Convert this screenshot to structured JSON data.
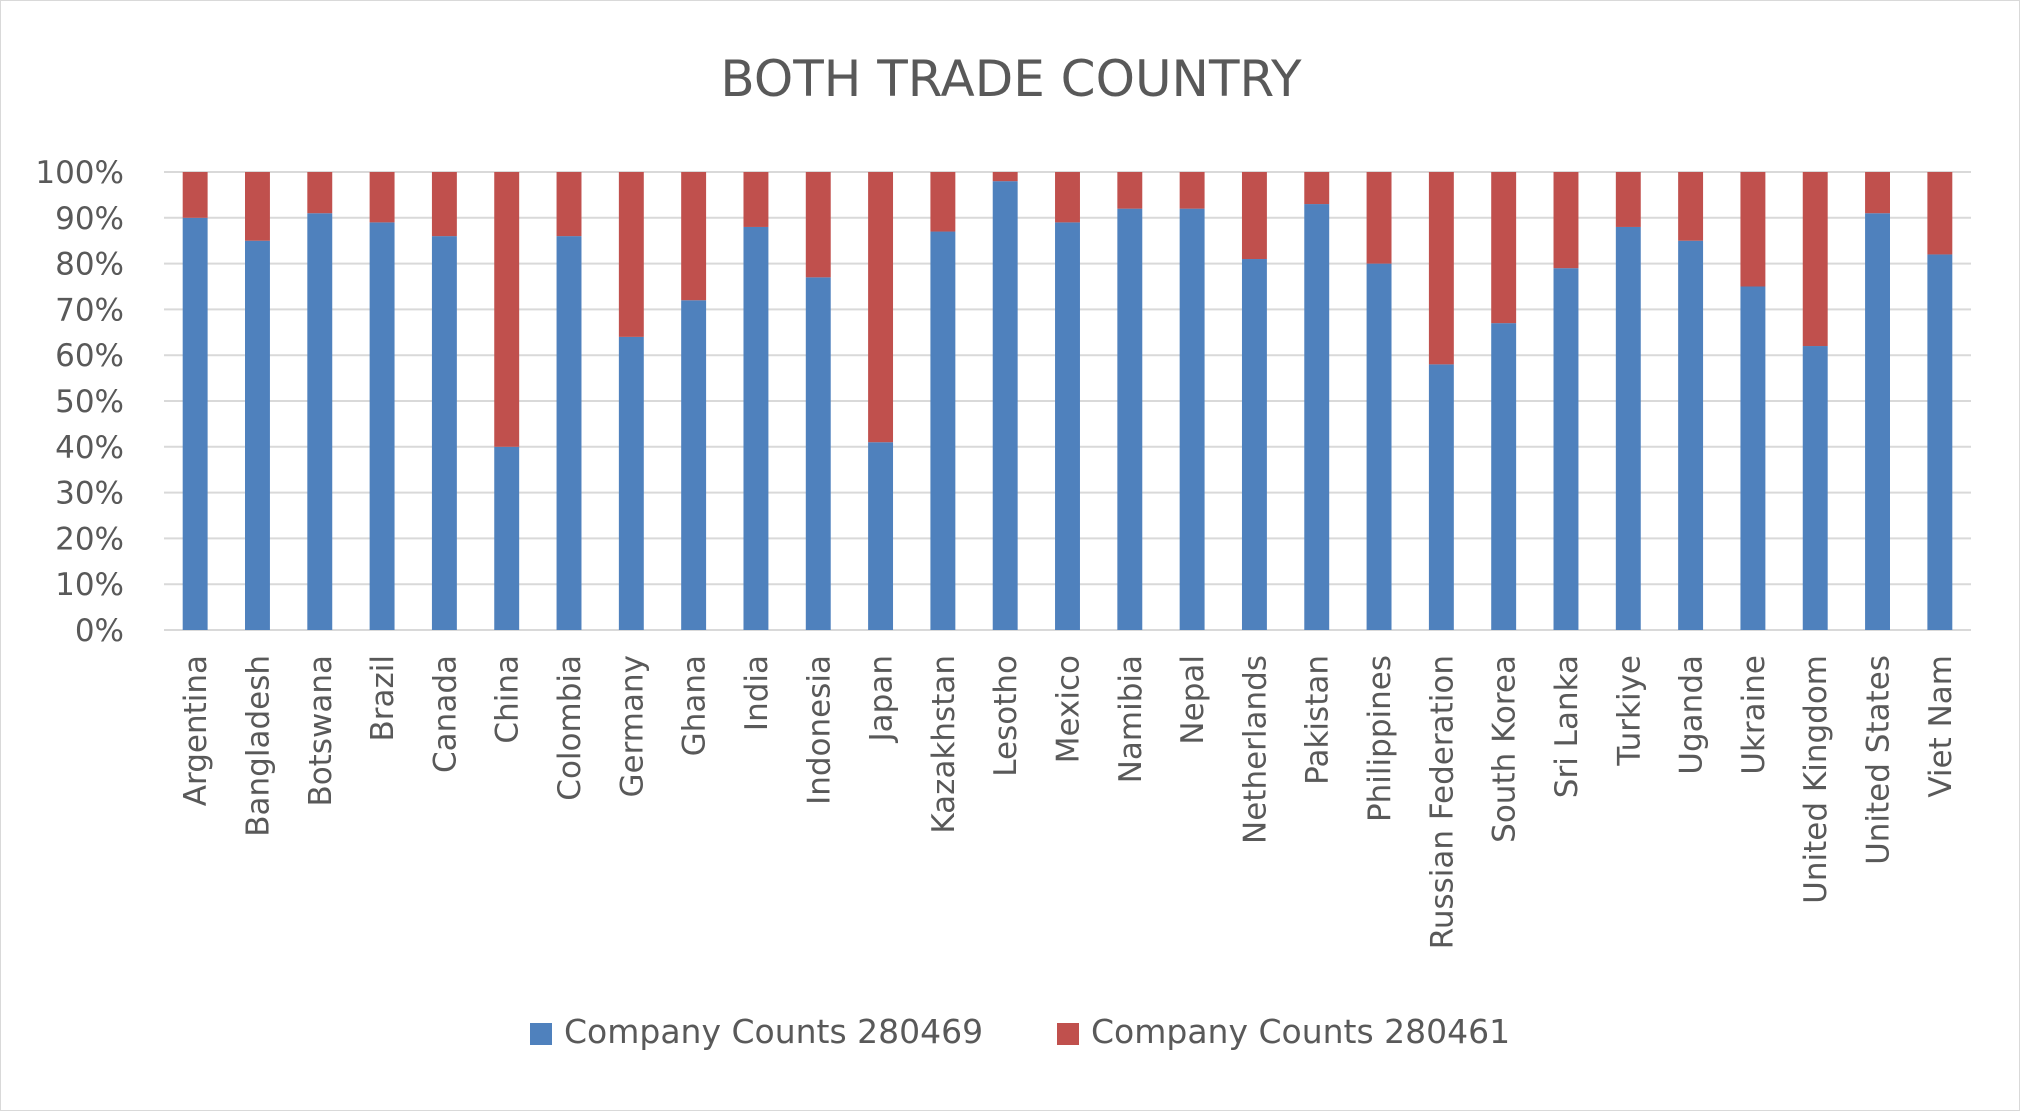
{
  "chart_data": {
    "type": "bar",
    "stacked": "percent",
    "title": "BOTH TRADE COUNTRY",
    "xlabel": "",
    "ylabel": "",
    "ylim": [
      0,
      100
    ],
    "y_ticks": [
      "0%",
      "10%",
      "20%",
      "30%",
      "40%",
      "50%",
      "60%",
      "70%",
      "80%",
      "90%",
      "100%"
    ],
    "grid": true,
    "legend_position": "bottom",
    "categories": [
      "Argentina",
      "Bangladesh",
      "Botswana",
      "Brazil",
      "Canada",
      "China",
      "Colombia",
      "Germany",
      "Ghana",
      "India",
      "Indonesia",
      "Japan",
      "Kazakhstan",
      "Lesotho",
      "Mexico",
      "Namibia",
      "Nepal",
      "Netherlands",
      "Pakistan",
      "Philippines",
      "Russian Federation",
      "South Korea",
      "Sri Lanka",
      "Turkiye",
      "Uganda",
      "Ukraine",
      "United Kingdom",
      "United States",
      "Viet Nam"
    ],
    "series": [
      {
        "name": "Company Counts 280469",
        "color": "#4f81bd",
        "values": [
          90,
          85,
          91,
          89,
          86,
          40,
          86,
          64,
          72,
          88,
          77,
          41,
          87,
          98,
          89,
          92,
          92,
          81,
          93,
          80,
          58,
          67,
          79,
          88,
          85,
          75,
          62,
          91,
          82
        ]
      },
      {
        "name": "Company Counts 280461",
        "color": "#c0504d",
        "values": [
          10,
          15,
          9,
          11,
          14,
          60,
          14,
          36,
          28,
          12,
          23,
          59,
          13,
          2,
          11,
          8,
          8,
          19,
          7,
          20,
          42,
          33,
          21,
          12,
          15,
          25,
          38,
          9,
          18
        ]
      }
    ]
  }
}
